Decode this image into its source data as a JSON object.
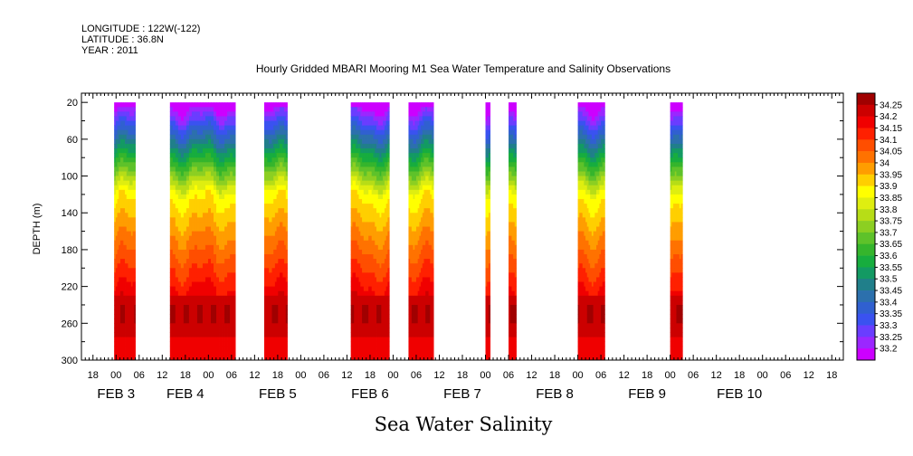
{
  "header": {
    "longitude": "LONGITUDE : 122W(-122)",
    "latitude": "LATITUDE : 36.8N",
    "year": "YEAR : 2011"
  },
  "caption": "Sea Water Salinity",
  "chart_data": {
    "type": "heatmap",
    "title": "Hourly Gridded MBARI Mooring M1 Sea Water Temperature and Salinity Observations",
    "ylabel": "DEPTH (m)",
    "y_range": [
      10,
      300
    ],
    "y_reversed": true,
    "y_ticks": [
      20,
      60,
      100,
      140,
      180,
      220,
      260,
      300
    ],
    "x_range_hours": [
      -9,
      189
    ],
    "hour_ticks": [
      {
        "h": -6,
        "label": "18"
      },
      {
        "h": 0,
        "label": "00"
      },
      {
        "h": 6,
        "label": "06"
      },
      {
        "h": 12,
        "label": "12"
      },
      {
        "h": 18,
        "label": "18"
      },
      {
        "h": 24,
        "label": "00"
      },
      {
        "h": 30,
        "label": "06"
      },
      {
        "h": 36,
        "label": "12"
      },
      {
        "h": 42,
        "label": "18"
      },
      {
        "h": 48,
        "label": "00"
      },
      {
        "h": 54,
        "label": "06"
      },
      {
        "h": 60,
        "label": "12"
      },
      {
        "h": 66,
        "label": "18"
      },
      {
        "h": 72,
        "label": "00"
      },
      {
        "h": 78,
        "label": "06"
      },
      {
        "h": 84,
        "label": "12"
      },
      {
        "h": 90,
        "label": "18"
      },
      {
        "h": 96,
        "label": "00"
      },
      {
        "h": 102,
        "label": "06"
      },
      {
        "h": 108,
        "label": "12"
      },
      {
        "h": 114,
        "label": "18"
      },
      {
        "h": 120,
        "label": "00"
      },
      {
        "h": 126,
        "label": "06"
      },
      {
        "h": 132,
        "label": "12"
      },
      {
        "h": 138,
        "label": "18"
      },
      {
        "h": 144,
        "label": "00"
      },
      {
        "h": 150,
        "label": "06"
      },
      {
        "h": 156,
        "label": "12"
      },
      {
        "h": 162,
        "label": "18"
      },
      {
        "h": 168,
        "label": "00"
      },
      {
        "h": 174,
        "label": "06"
      },
      {
        "h": 180,
        "label": "12"
      },
      {
        "h": 186,
        "label": "18"
      }
    ],
    "day_labels": [
      {
        "h": 0,
        "label": "FEB  3"
      },
      {
        "h": 18,
        "label": "FEB  4"
      },
      {
        "h": 42,
        "label": "FEB  5"
      },
      {
        "h": 66,
        "label": "FEB  6"
      },
      {
        "h": 90,
        "label": "FEB  7"
      },
      {
        "h": 114,
        "label": "FEB  8"
      },
      {
        "h": 138,
        "label": "FEB  9"
      },
      {
        "h": 162,
        "label": "FEB 10"
      }
    ],
    "data_segments_hours": [
      [
        -0.5,
        5
      ],
      [
        14,
        31
      ],
      [
        38.5,
        44.5
      ],
      [
        61,
        71
      ],
      [
        76,
        82.5
      ],
      [
        96,
        97.2
      ],
      [
        102,
        104
      ],
      [
        120,
        127
      ],
      [
        144,
        147.2
      ]
    ],
    "levels": [
      "33.2",
      "33.25",
      "33.3",
      "33.35",
      "33.4",
      "33.45",
      "33.5",
      "33.55",
      "33.6",
      "33.65",
      "33.7",
      "33.75",
      "33.8",
      "33.85",
      "33.9",
      "33.95",
      "34",
      "34.05",
      "34.1",
      "34.15",
      "34.2",
      "34.25"
    ],
    "colors": [
      "#cc00ff",
      "#9b27ff",
      "#6a3dff",
      "#3a52f0",
      "#3060d0",
      "#2c70ad",
      "#207f8a",
      "#139a63",
      "#17ad3e",
      "#35b52c",
      "#5ec22a",
      "#8ccf22",
      "#b7dd17",
      "#dfee10",
      "#ffff00",
      "#ffcf00",
      "#ff9d00",
      "#ff7200",
      "#ff4e00",
      "#ff2000",
      "#f00000",
      "#cc0000",
      "#a00000"
    ]
  }
}
